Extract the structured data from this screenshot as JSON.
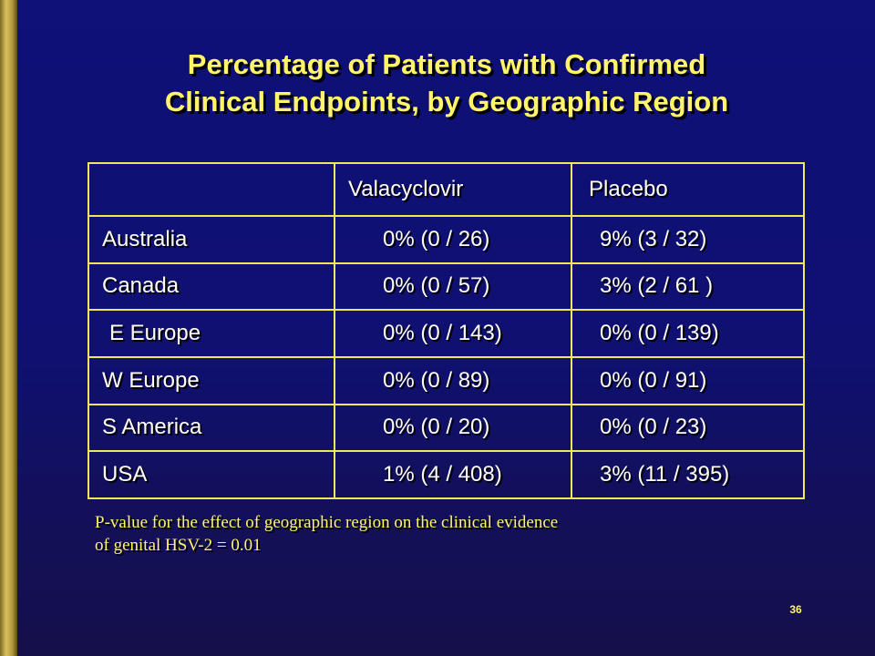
{
  "slide": {
    "title_line1": "Percentage of Patients with Confirmed",
    "title_line2": "Clinical Endpoints, by Geographic Region",
    "page_number": "36",
    "colors": {
      "background": "#0f1078",
      "title": "#fff46a",
      "table_border": "#f0e85a",
      "side_bar": "#c8b050"
    }
  },
  "table": {
    "headers": [
      "",
      "Valacyclovir",
      "Placebo"
    ],
    "rows": [
      {
        "region": "Australia",
        "valacyclovir": "0%  (0 / 26)",
        "placebo": "9% (3 / 32)"
      },
      {
        "region": "Canada",
        "valacyclovir": "0%  (0 / 57)",
        "placebo": "3% (2 / 61 )"
      },
      {
        "region": "E Europe",
        "valacyclovir": "0%  (0 / 143)",
        "placebo": "0% (0 / 139)"
      },
      {
        "region": "W Europe",
        "valacyclovir": "0%  (0 / 89)",
        "placebo": "0% (0 / 91)"
      },
      {
        "region": "S America",
        "valacyclovir": "0%  (0 / 20)",
        "placebo": "0% (0 / 23)"
      },
      {
        "region": "USA",
        "valacyclovir": "1%  (4 / 408)",
        "placebo": "3% (11 / 395)"
      }
    ]
  },
  "footnote": {
    "line1": "P-value for the effect of geographic region on the clinical evidence",
    "line2": "of genital HSV-2 = 0.01"
  }
}
